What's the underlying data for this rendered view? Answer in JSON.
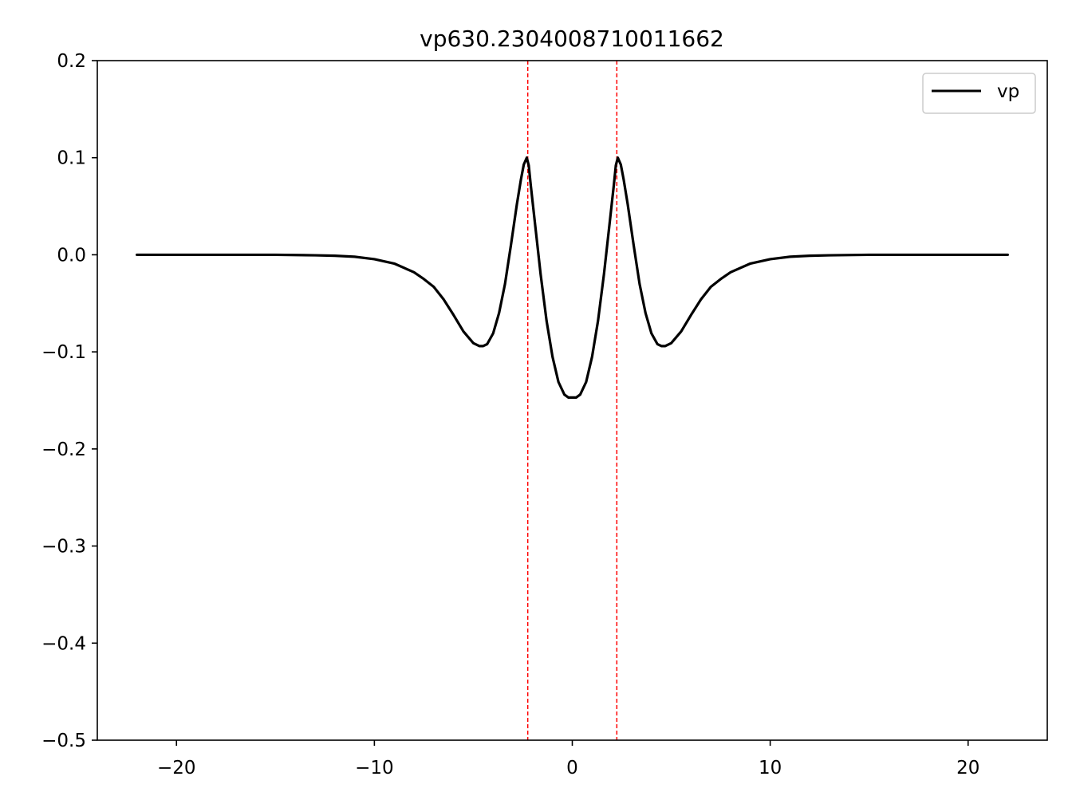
{
  "chart_data": {
    "type": "line",
    "title": "vp630.2304008710011662",
    "xlabel": "",
    "ylabel": "",
    "xlim": [
      -24,
      24
    ],
    "ylim": [
      -0.5,
      0.2
    ],
    "xticks": [
      -20,
      -10,
      0,
      10,
      20
    ],
    "xtick_labels": [
      "−20",
      "−10",
      "0",
      "10",
      "20"
    ],
    "yticks": [
      0.2,
      0.1,
      0.0,
      -0.1,
      -0.2,
      -0.3,
      -0.4,
      -0.5
    ],
    "ytick_labels": [
      "0.2",
      "0.1",
      "0.0",
      "−0.1",
      "−0.2",
      "−0.3",
      "−0.4",
      "−0.5"
    ],
    "grid": false,
    "legend_placement": "upper right",
    "series": [
      {
        "name": "vp",
        "color": "#000000",
        "x": [
          -22,
          -18,
          -15,
          -13,
          -12,
          -11,
          -10,
          -9,
          -8,
          -7.5,
          -7,
          -6.5,
          -6,
          -5.5,
          -5,
          -4.7,
          -4.5,
          -4.3,
          -4,
          -3.7,
          -3.4,
          -3.1,
          -2.8,
          -2.6,
          -2.45,
          -2.3,
          -2.2,
          -2.1,
          -1.9,
          -1.6,
          -1.3,
          -1.0,
          -0.7,
          -0.4,
          -0.2,
          0,
          0.2,
          0.4,
          0.7,
          1.0,
          1.3,
          1.6,
          1.9,
          2.1,
          2.2,
          2.3,
          2.45,
          2.6,
          2.8,
          3.1,
          3.4,
          3.7,
          4,
          4.3,
          4.5,
          4.7,
          5,
          5.5,
          6,
          6.5,
          7,
          7.5,
          8,
          9,
          10,
          11,
          12,
          13,
          15,
          18,
          22
        ],
        "y": [
          0.0,
          0.0,
          0.0,
          -0.0005,
          -0.001,
          -0.002,
          -0.0045,
          -0.009,
          -0.018,
          -0.025,
          -0.033,
          -0.046,
          -0.062,
          -0.079,
          -0.091,
          -0.094,
          -0.094,
          -0.092,
          -0.081,
          -0.06,
          -0.03,
          0.01,
          0.052,
          0.077,
          0.093,
          0.1,
          0.092,
          0.072,
          0.035,
          -0.02,
          -0.068,
          -0.105,
          -0.131,
          -0.144,
          -0.147,
          -0.147,
          -0.147,
          -0.144,
          -0.131,
          -0.105,
          -0.068,
          -0.02,
          0.035,
          0.072,
          0.092,
          0.1,
          0.093,
          0.077,
          0.052,
          0.01,
          -0.03,
          -0.06,
          -0.081,
          -0.092,
          -0.094,
          -0.094,
          -0.091,
          -0.079,
          -0.062,
          -0.046,
          -0.033,
          -0.025,
          -0.018,
          -0.009,
          -0.0045,
          -0.002,
          -0.001,
          -0.0005,
          0.0,
          0.0,
          0.0
        ]
      }
    ],
    "vertical_lines": [
      {
        "x": -2.25,
        "color": "#ff0000",
        "style": "dashed"
      },
      {
        "x": 2.25,
        "color": "#ff0000",
        "style": "dashed"
      }
    ]
  }
}
